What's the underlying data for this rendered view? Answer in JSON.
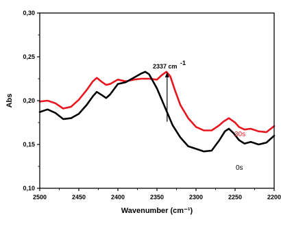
{
  "chart_data": {
    "type": "line",
    "xlabel": "Wavenumber (cm⁻¹)",
    "ylabel": "Abs",
    "xlim": [
      2500,
      2200
    ],
    "ylim": [
      0.1,
      0.3
    ],
    "x_reversed": true,
    "x_ticks": [
      2500,
      2450,
      2400,
      2350,
      2300,
      2250,
      2200
    ],
    "x_tick_labels": [
      "2500",
      "2450",
      "2400",
      "2350",
      "2300",
      "2250",
      "2200"
    ],
    "y_ticks": [
      0.1,
      0.15,
      0.2,
      0.25,
      0.3
    ],
    "y_tick_labels": [
      "0,10",
      "0,15",
      "0,20",
      "0,25",
      "0,30"
    ],
    "grid": false,
    "annotation": {
      "text_main": "2337 cm",
      "text_sup": "-1",
      "arrow_x": 2337,
      "arrow_from_y": 0.176,
      "arrow_to_y": 0.232
    },
    "series": [
      {
        "name": "30s",
        "color": "#e8141e",
        "x": [
          2500,
          2490,
          2480,
          2470,
          2460,
          2450,
          2440,
          2432,
          2427,
          2420,
          2415,
          2410,
          2400,
          2390,
          2380,
          2370,
          2360,
          2350,
          2344,
          2338,
          2333,
          2327,
          2320,
          2310,
          2300,
          2290,
          2280,
          2270,
          2265,
          2258,
          2250,
          2245,
          2238,
          2230,
          2220,
          2210,
          2200
        ],
        "y": [
          0.199,
          0.2,
          0.197,
          0.191,
          0.193,
          0.201,
          0.212,
          0.222,
          0.226,
          0.221,
          0.218,
          0.219,
          0.224,
          0.222,
          0.224,
          0.225,
          0.225,
          0.224,
          0.229,
          0.233,
          0.228,
          0.212,
          0.195,
          0.18,
          0.17,
          0.166,
          0.166,
          0.172,
          0.176,
          0.18,
          0.175,
          0.17,
          0.167,
          0.168,
          0.165,
          0.164,
          0.171
        ]
      },
      {
        "name": "0s",
        "color": "#000000",
        "x": [
          2500,
          2490,
          2480,
          2470,
          2460,
          2450,
          2440,
          2432,
          2427,
          2420,
          2415,
          2410,
          2400,
          2390,
          2380,
          2370,
          2365,
          2360,
          2350,
          2340,
          2330,
          2320,
          2310,
          2300,
          2290,
          2280,
          2270,
          2263,
          2258,
          2252,
          2245,
          2238,
          2230,
          2220,
          2210,
          2200
        ],
        "y": [
          0.187,
          0.19,
          0.186,
          0.179,
          0.18,
          0.185,
          0.195,
          0.205,
          0.21,
          0.206,
          0.203,
          0.207,
          0.219,
          0.221,
          0.226,
          0.231,
          0.233,
          0.23,
          0.214,
          0.193,
          0.172,
          0.158,
          0.148,
          0.145,
          0.142,
          0.143,
          0.155,
          0.165,
          0.168,
          0.163,
          0.155,
          0.151,
          0.153,
          0.15,
          0.152,
          0.16
        ]
      }
    ],
    "legend_placement": "right-end-of-lines"
  }
}
